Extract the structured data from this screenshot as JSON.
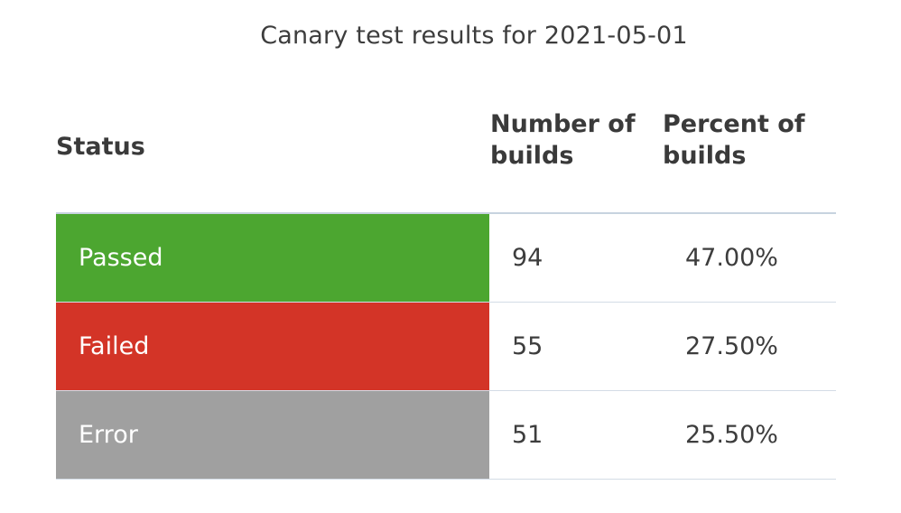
{
  "title": "Canary test results for 2021-05-01",
  "table": {
    "headers": {
      "status": "Status",
      "number": "Number of builds",
      "percent": "Percent of builds"
    },
    "rows": [
      {
        "status": "Passed",
        "count": "94",
        "percent": "47.00%",
        "color": "#4ca630"
      },
      {
        "status": "Failed",
        "count": "55",
        "percent": "27.50%",
        "color": "#d33427"
      },
      {
        "status": "Error",
        "count": "51",
        "percent": "25.50%",
        "color": "#a0a0a0"
      }
    ]
  }
}
